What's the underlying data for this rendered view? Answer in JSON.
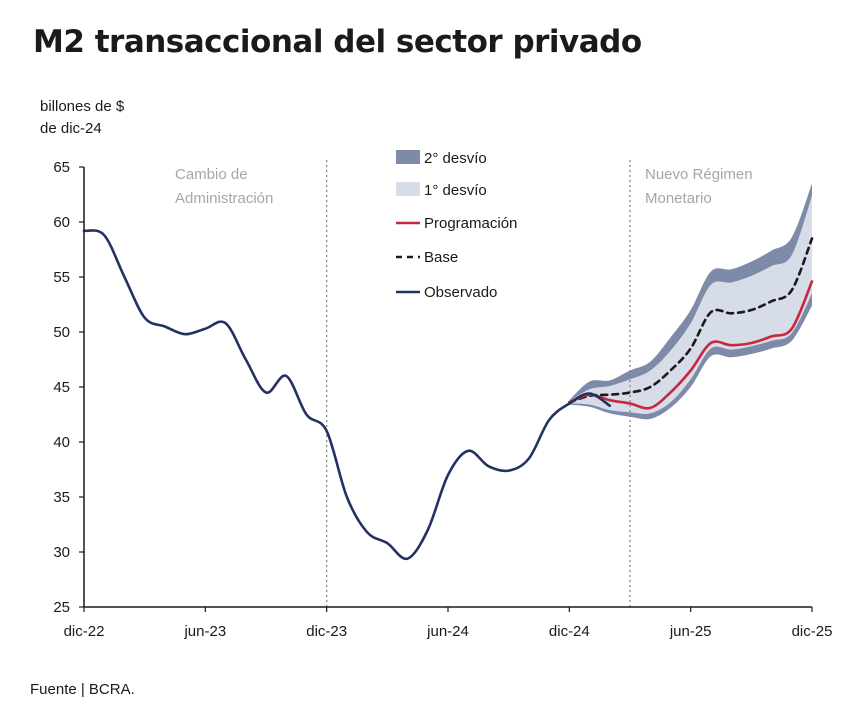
{
  "title": "M2 transaccional del sector privado",
  "units_line1": "billones de $",
  "units_line2": "de dic-24",
  "source": "Fuente | BCRA.",
  "colors": {
    "observado": "#233361",
    "programacion": "#c8283f",
    "base": "#1a1a1a",
    "band2": "#7d8ba8",
    "band1": "#d6dce8",
    "annotation": "#a6a6a6"
  },
  "chart_data": {
    "type": "line",
    "xlabel": "",
    "ylabel": "billones de $ de dic-24",
    "ylim": [
      25,
      65
    ],
    "yticks": [
      25,
      30,
      35,
      40,
      45,
      50,
      55,
      60,
      65
    ],
    "xlim": [
      "dic-22",
      "dic-25"
    ],
    "xticks": [
      "dic-22",
      "jun-23",
      "dic-23",
      "jun-24",
      "dic-24",
      "jun-25",
      "dic-25"
    ],
    "grid": false,
    "legend_placement": "top-center",
    "legend": [
      "2° desvío",
      "1° desvío",
      "Programación",
      "Base",
      "Observado"
    ],
    "annotations": [
      {
        "text_line1": "Cambio de",
        "text_line2": "Administración",
        "x": "dic-23"
      },
      {
        "text_line1": "Nuevo Régimen",
        "text_line2": "Monetario",
        "x": "mar-25"
      }
    ],
    "series": [
      {
        "name": "Observado",
        "x": [
          "dic-22",
          "ene-23",
          "feb-23",
          "mar-23",
          "abr-23",
          "may-23",
          "jun-23",
          "jul-23",
          "ago-23",
          "sep-23",
          "oct-23",
          "nov-23",
          "dic-23",
          "ene-24",
          "feb-24",
          "mar-24",
          "abr-24",
          "may-24",
          "jun-24",
          "jul-24",
          "ago-24",
          "sep-24",
          "oct-24",
          "nov-24",
          "dic-24",
          "ene-25",
          "feb-25"
        ],
        "values": [
          59.2,
          58.8,
          55.0,
          51.3,
          50.5,
          49.8,
          50.3,
          50.8,
          47.5,
          44.5,
          46.0,
          42.5,
          41.0,
          35.0,
          31.8,
          30.8,
          29.4,
          32.0,
          37.0,
          39.2,
          37.8,
          37.4,
          38.5,
          42.0,
          43.5,
          44.4,
          43.3
        ]
      },
      {
        "name": "Programación",
        "x": [
          "dic-24",
          "ene-25",
          "feb-25",
          "mar-25",
          "abr-25",
          "may-25",
          "jun-25",
          "jul-25",
          "ago-25",
          "sep-25",
          "oct-25",
          "nov-25",
          "dic-25"
        ],
        "values": [
          43.6,
          44.3,
          43.8,
          43.5,
          43.1,
          44.5,
          46.5,
          49.0,
          48.8,
          49.0,
          49.6,
          50.3,
          54.6
        ]
      },
      {
        "name": "Base",
        "x": [
          "dic-24",
          "ene-25",
          "feb-25",
          "mar-25",
          "abr-25",
          "may-25",
          "jun-25",
          "jul-25",
          "ago-25",
          "sep-25",
          "oct-25",
          "nov-25",
          "dic-25"
        ],
        "values": [
          43.6,
          44.2,
          44.3,
          44.5,
          45.0,
          46.5,
          48.5,
          51.8,
          51.7,
          52.0,
          52.8,
          53.8,
          58.5
        ]
      },
      {
        "name": "1° desvío",
        "x": [
          "dic-24",
          "ene-25",
          "feb-25",
          "mar-25",
          "abr-25",
          "may-25",
          "jun-25",
          "jul-25",
          "ago-25",
          "sep-25",
          "oct-25",
          "nov-25",
          "dic-25"
        ],
        "lower": [
          43.5,
          43.4,
          42.9,
          42.7,
          42.6,
          43.6,
          45.7,
          48.5,
          48.4,
          48.7,
          49.2,
          49.9,
          53.5
        ],
        "upper": [
          43.7,
          44.8,
          45.1,
          45.7,
          46.5,
          48.3,
          50.8,
          54.3,
          54.5,
          55.1,
          56.0,
          57.0,
          62.4
        ]
      },
      {
        "name": "2° desvío",
        "x": [
          "dic-24",
          "ene-25",
          "feb-25",
          "mar-25",
          "abr-25",
          "may-25",
          "jun-25",
          "jul-25",
          "ago-25",
          "sep-25",
          "oct-25",
          "nov-25",
          "dic-25"
        ],
        "lower": [
          43.4,
          43.2,
          42.6,
          42.3,
          42.1,
          43.1,
          45.0,
          47.8,
          47.7,
          48.0,
          48.5,
          49.2,
          52.4
        ],
        "upper": [
          43.8,
          45.5,
          45.6,
          46.5,
          47.3,
          49.5,
          52.0,
          55.5,
          55.7,
          56.4,
          57.4,
          58.6,
          63.5
        ]
      }
    ]
  }
}
